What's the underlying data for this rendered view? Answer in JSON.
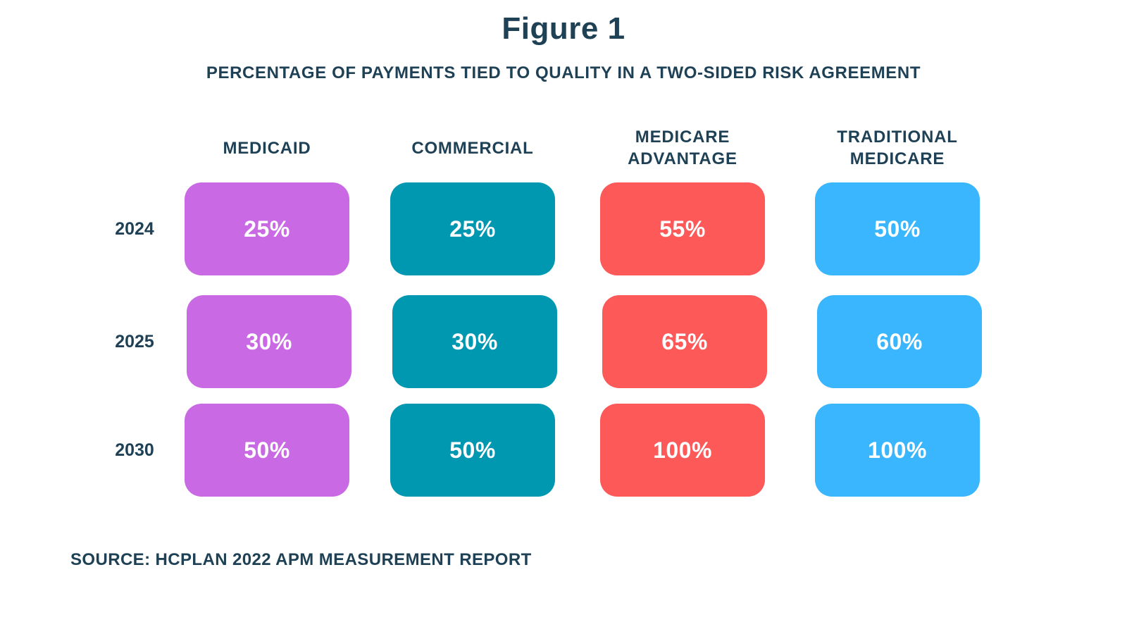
{
  "figure_title": "Figure 1",
  "chart_data": {
    "type": "table",
    "title": "PERCENTAGE OF PAYMENTS TIED TO QUALITY IN A TWO-SIDED RISK AGREEMENT",
    "columns": [
      {
        "label": "MEDICAID",
        "color": "#c96ae4"
      },
      {
        "label": "COMMERCIAL",
        "color": "#0097b1"
      },
      {
        "label": "MEDICARE\nADVANTAGE",
        "color": "#fe5959"
      },
      {
        "label": "TRADITIONAL\nMEDICARE",
        "color": "#39b6fe"
      }
    ],
    "rows": [
      {
        "label": "2024",
        "values": [
          "25%",
          "25%",
          "55%",
          "50%"
        ]
      },
      {
        "label": "2025",
        "values": [
          "30%",
          "30%",
          "65%",
          "60%"
        ]
      },
      {
        "label": "2030",
        "values": [
          "50%",
          "50%",
          "100%",
          "100%"
        ]
      }
    ],
    "source": "SOURCE: HCPLAN 2022 APM MEASUREMENT REPORT"
  }
}
